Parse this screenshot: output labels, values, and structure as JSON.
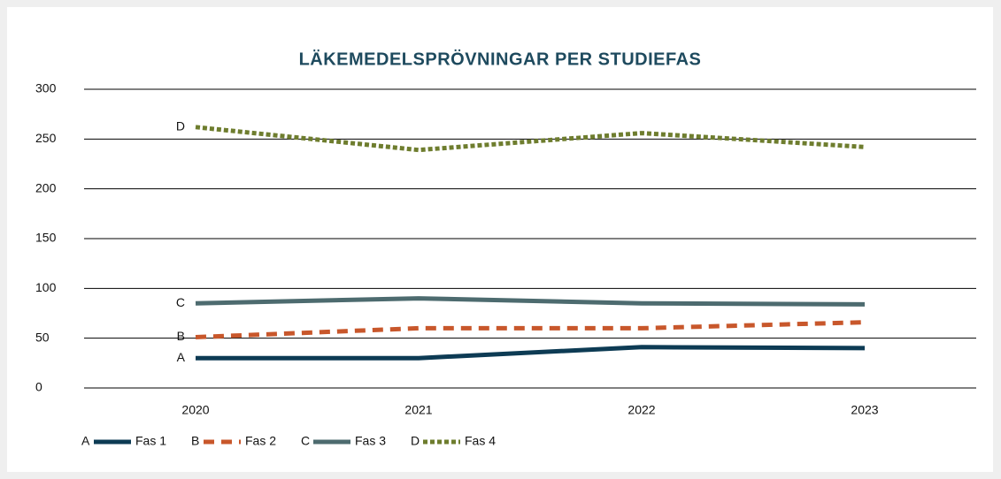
{
  "chart_data": {
    "type": "line",
    "title": "LÄKEMEDELSPRÖVNINGAR PER STUDIEFAS",
    "categories": [
      "2020",
      "2021",
      "2022",
      "2023"
    ],
    "series": [
      {
        "name": "Fas 1",
        "label": "A",
        "color": "#0d3b54",
        "style": "solid",
        "values": [
          30,
          30,
          41,
          40
        ]
      },
      {
        "name": "Fas 2",
        "label": "B",
        "color": "#c8572b",
        "style": "dashed",
        "values": [
          51,
          60,
          60,
          66
        ]
      },
      {
        "name": "Fas 3",
        "label": "C",
        "color": "#4d6b6f",
        "style": "solid",
        "values": [
          85,
          90,
          85,
          84
        ]
      },
      {
        "name": "Fas 4",
        "label": "D",
        "color": "#6e7d2e",
        "style": "dotted",
        "values": [
          262,
          239,
          256,
          242
        ]
      }
    ],
    "ylim": [
      0,
      300
    ],
    "yticks": [
      0,
      50,
      100,
      150,
      200,
      250,
      300
    ],
    "grid": true,
    "legend": "bottom-left"
  }
}
